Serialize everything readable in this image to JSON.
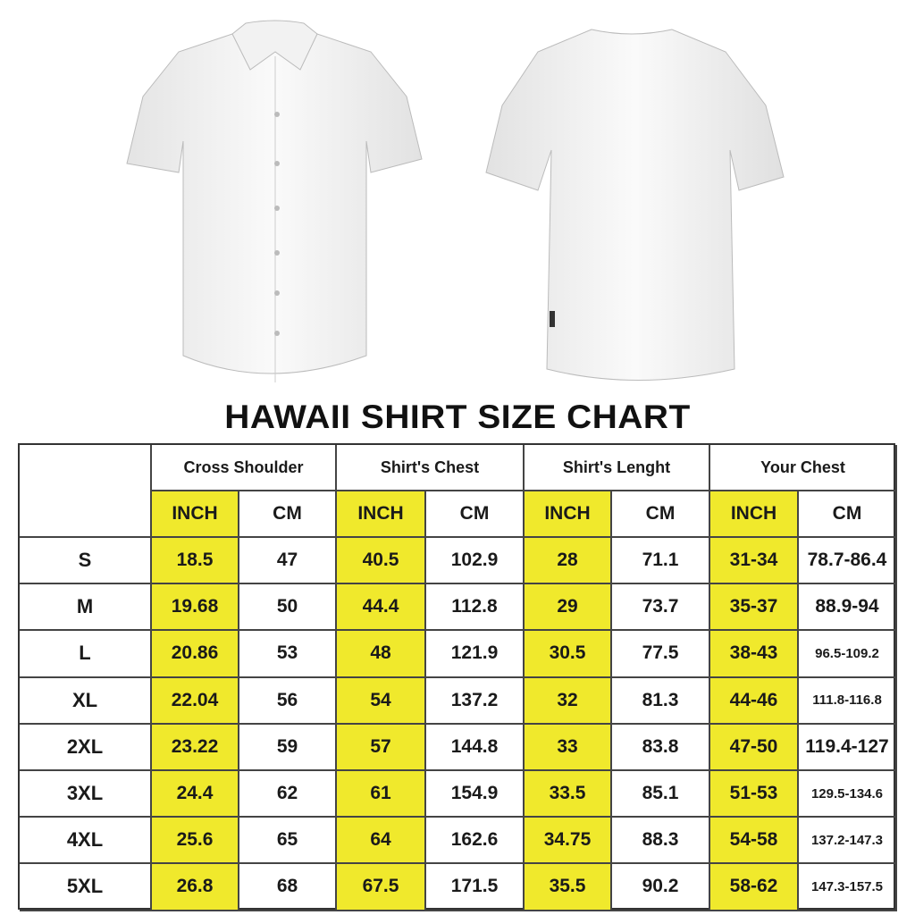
{
  "title": "HAWAII SHIRT SIZE CHART",
  "colors": {
    "highlight": "#f0e92c",
    "border": "#444444"
  },
  "images": {
    "front": "shirt-front",
    "back": "shirt-back"
  },
  "table": {
    "groups": [
      "Cross Shoulder",
      "Shirt's Chest",
      "Shirt's Lenght",
      "Your Chest"
    ],
    "units": [
      "INCH",
      "CM",
      "INCH",
      "CM",
      "INCH",
      "CM",
      "INCH",
      "CM"
    ],
    "rows": [
      {
        "size": "S",
        "values": [
          "18.5",
          "47",
          "40.5",
          "102.9",
          "28",
          "71.1",
          "31-34",
          "78.7-86.4"
        ]
      },
      {
        "size": "M",
        "values": [
          "19.68",
          "50",
          "44.4",
          "112.8",
          "29",
          "73.7",
          "35-37",
          "88.9-94"
        ]
      },
      {
        "size": "L",
        "values": [
          "20.86",
          "53",
          "48",
          "121.9",
          "30.5",
          "77.5",
          "38-43",
          "96.5-109.2"
        ]
      },
      {
        "size": "XL",
        "values": [
          "22.04",
          "56",
          "54",
          "137.2",
          "32",
          "81.3",
          "44-46",
          "111.8-116.8"
        ]
      },
      {
        "size": "2XL",
        "values": [
          "23.22",
          "59",
          "57",
          "144.8",
          "33",
          "83.8",
          "47-50",
          "119.4-127"
        ]
      },
      {
        "size": "3XL",
        "values": [
          "24.4",
          "62",
          "61",
          "154.9",
          "33.5",
          "85.1",
          "51-53",
          "129.5-134.6"
        ]
      },
      {
        "size": "4XL",
        "values": [
          "25.6",
          "65",
          "64",
          "162.6",
          "34.75",
          "88.3",
          "54-58",
          "137.2-147.3"
        ]
      },
      {
        "size": "5XL",
        "values": [
          "26.8",
          "68",
          "67.5",
          "171.5",
          "35.5",
          "90.2",
          "58-62",
          "147.3-157.5"
        ]
      }
    ]
  }
}
